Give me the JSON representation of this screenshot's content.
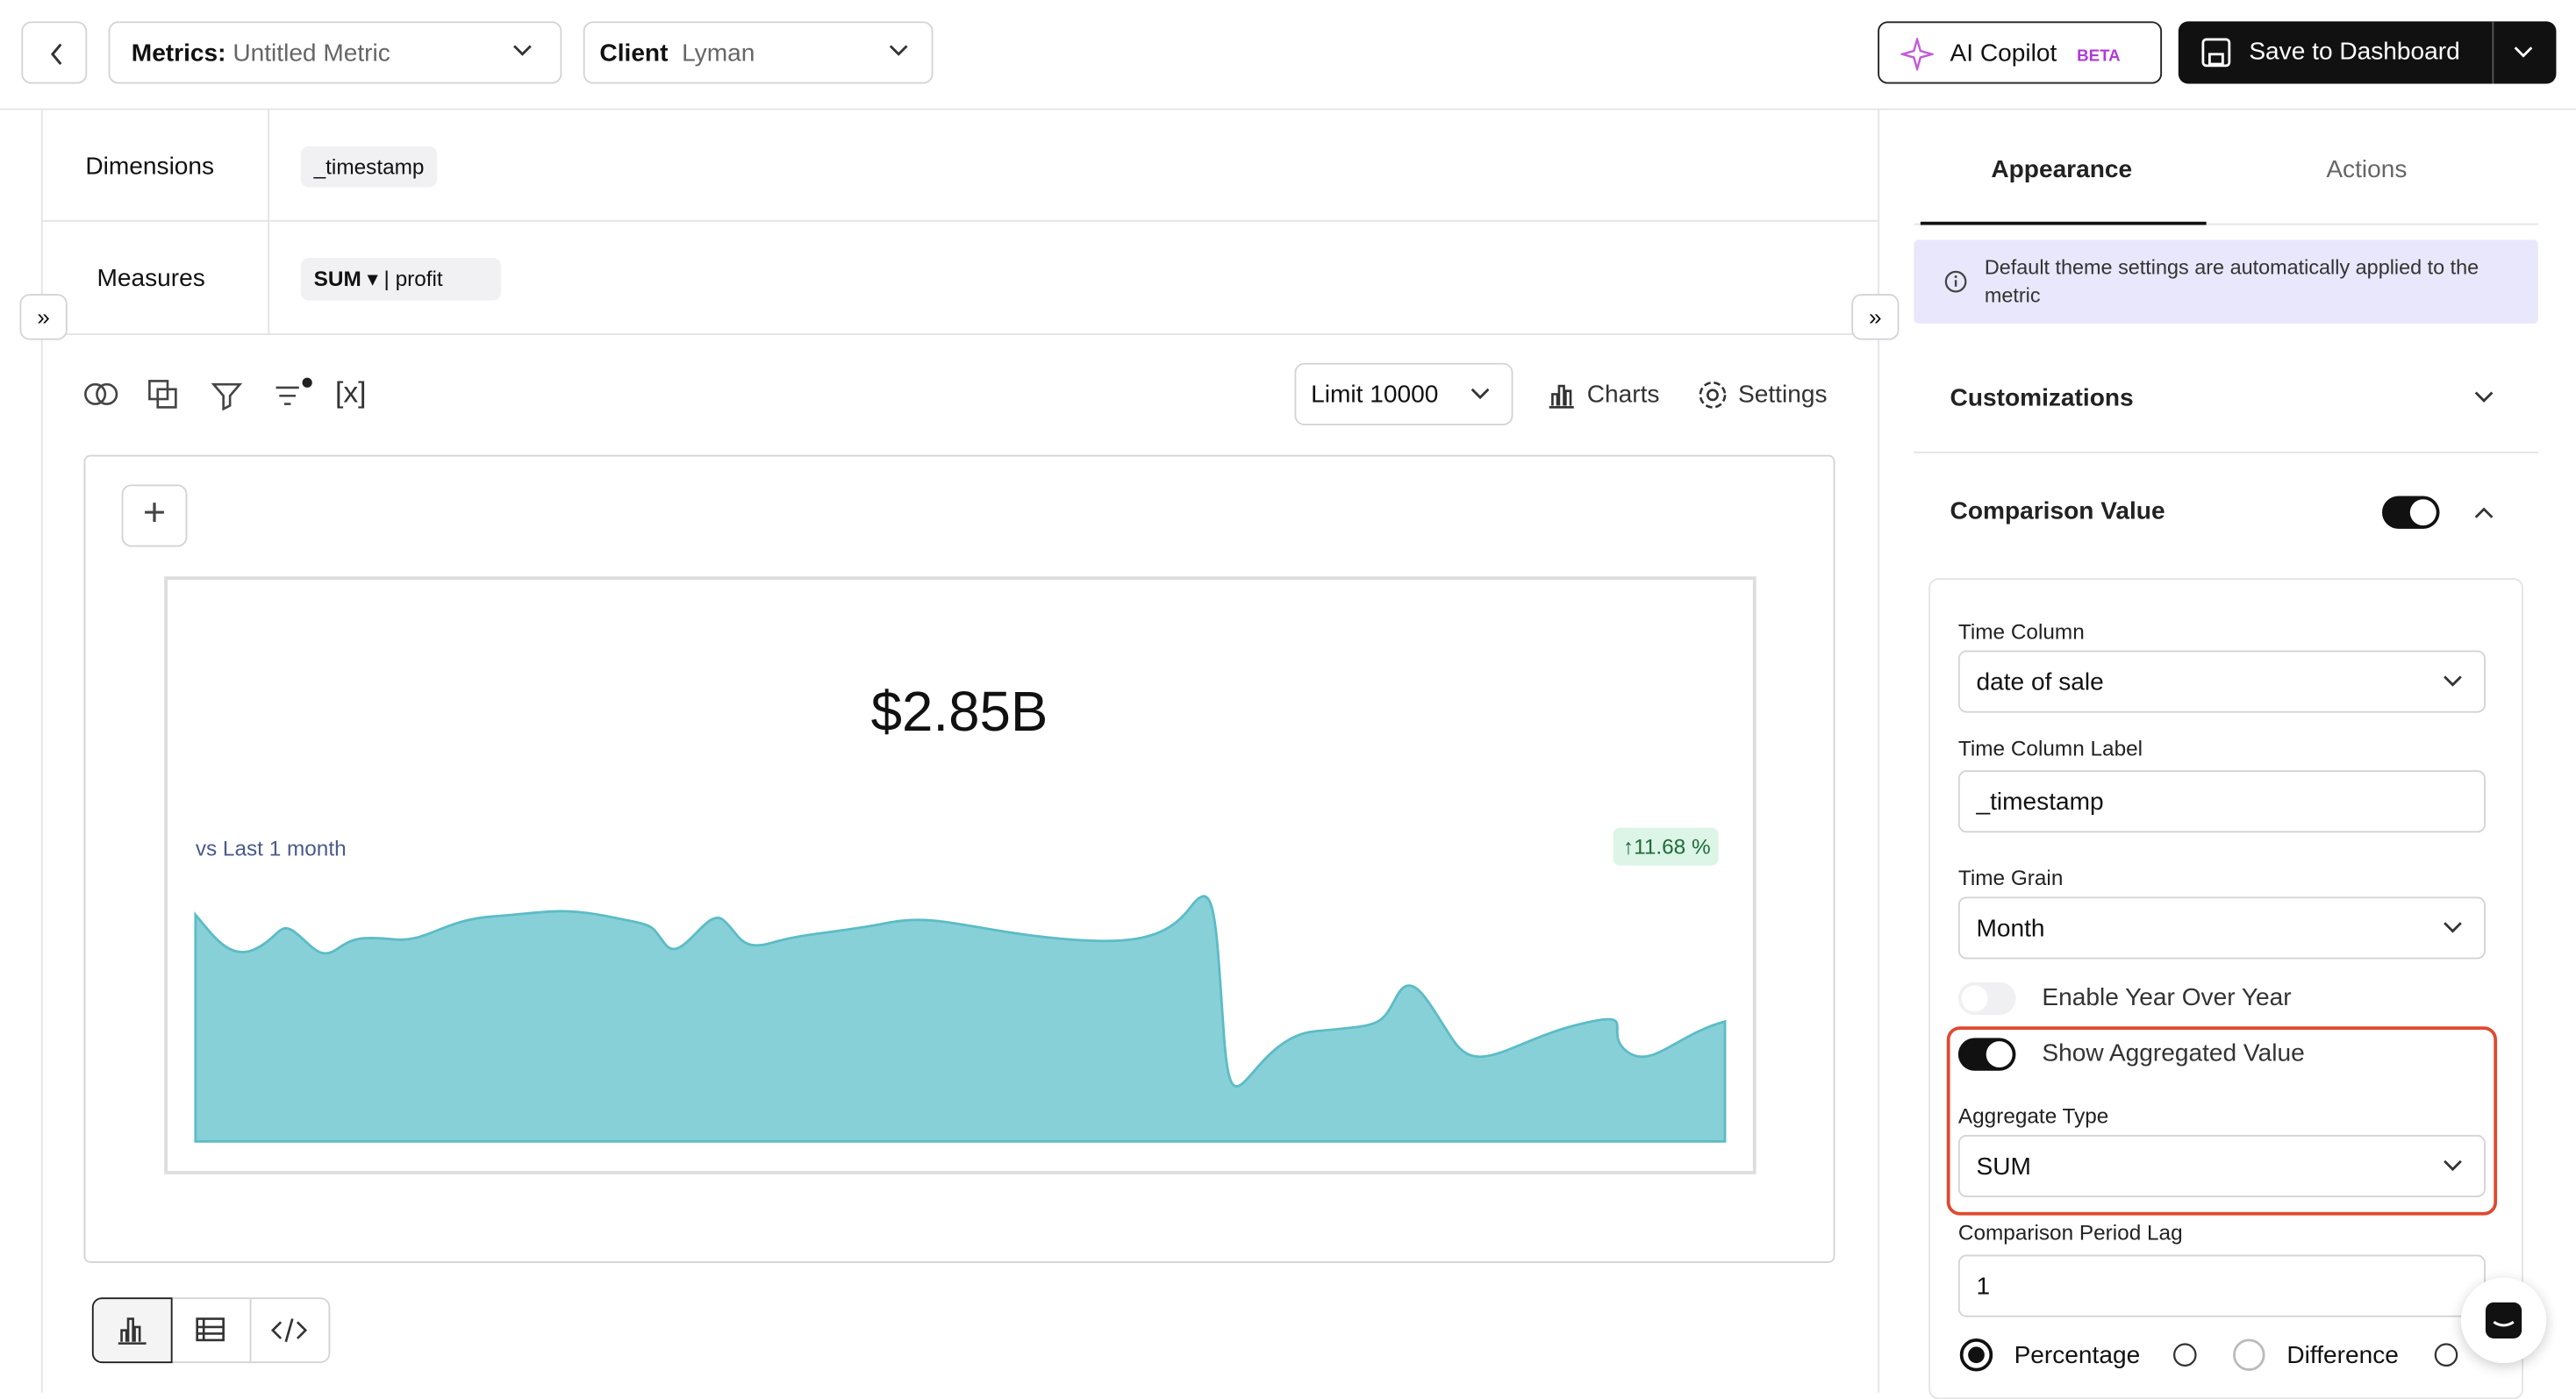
{
  "header": {
    "metrics_label": "Metrics:",
    "metric_name": "Untitled Metric",
    "client_label": "Client",
    "client_name": "Lyman",
    "copilot": "AI Copilot",
    "beta": "BETA",
    "save": "Save to Dashboard"
  },
  "query": {
    "dimensions_label": "Dimensions",
    "dimension": "_timestamp",
    "measures_label": "Measures",
    "aggregate": "SUM",
    "measure": "profit"
  },
  "toolbar": {
    "variables": "[x]",
    "limit": "Limit 10000",
    "charts": "Charts",
    "settings": "Settings"
  },
  "kpi": {
    "value": "$2.85B",
    "comparison": "vs Last 1 month",
    "change": "11.68 %"
  },
  "panel": {
    "tabs": [
      "Appearance",
      "Actions"
    ],
    "info": "Default theme settings are automatically applied to the metric",
    "customizations": "Customizations",
    "comparison": "Comparison Value",
    "time_column": {
      "label": "Time Column",
      "value": "date of sale"
    },
    "time_column_label": {
      "label": "Time Column Label",
      "value": "_timestamp"
    },
    "time_grain": {
      "label": "Time Grain",
      "value": "Month"
    },
    "year_over_year": "Enable Year Over Year",
    "show_aggregated": "Show Aggregated Value",
    "aggregate_type": {
      "label": "Aggregate Type",
      "value": "SUM"
    },
    "lag": {
      "label": "Comparison Period Lag",
      "value": "1"
    },
    "options": [
      "Percentage",
      "Difference"
    ]
  }
}
